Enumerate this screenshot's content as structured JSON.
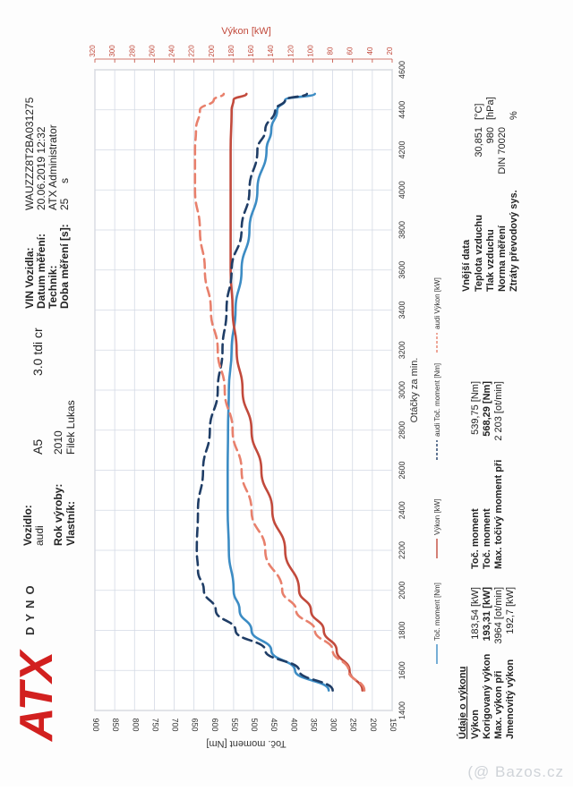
{
  "vehicle": {
    "vozidlo_label": "Vozidlo:",
    "vozidlo_value": "audi",
    "model": "A5",
    "engine": "3.0 tdi cr",
    "rok_label": "Rok výroby:",
    "rok_value": "2010",
    "vlastnik_label": "Vlastník:",
    "vlastnik_value": "Filek Lukas"
  },
  "measurement": {
    "vin_label": "VIN Vozidla:",
    "vin_value": "WAUZZZ8T2BA031275",
    "datum_label": "Datum měření:",
    "datum_value": "20.06.2019 12:32",
    "technik_label": "Technik:",
    "technik_value": "ATX Administrator",
    "doba_label": "Doba měření [s]:",
    "doba_value": "25",
    "doba_unit": "s"
  },
  "brand": {
    "logo_text": "ATX",
    "sub_text": "DYNO"
  },
  "chart_data": {
    "type": "line",
    "xlabel": "Otáčky za min.",
    "ylabel_left": "Toč. moment [Nm]",
    "ylabel_right": "Výkon [kW]",
    "x_range": [
      1400,
      4600
    ],
    "x_ticks": [
      "1400",
      "1600",
      "1800",
      "2000",
      "2200",
      "2400",
      "2600",
      "2800",
      "3000",
      "3200",
      "3400",
      "3600",
      "3800",
      "4000",
      "4200",
      "4400",
      "4600"
    ],
    "torque_range": [
      150,
      900
    ],
    "torque_ticks": [
      "150",
      "200",
      "250",
      "300",
      "350",
      "400",
      "450",
      "500",
      "550",
      "600",
      "650",
      "700",
      "750",
      "800",
      "850",
      "900"
    ],
    "power_range": [
      20,
      320
    ],
    "power_ticks": [
      "20",
      "40",
      "60",
      "80",
      "100",
      "120",
      "140",
      "160",
      "180",
      "200",
      "220",
      "240",
      "260",
      "280",
      "300",
      "320"
    ],
    "legend": [
      "Toč. moment [Nm]",
      "Výkon [kW]",
      "audi Toč. moment [Nm]",
      "audi Výkon [kW]"
    ],
    "series": [
      {
        "name": "Toč. moment [Nm]",
        "axis": "torque",
        "color": "#3c8cc4",
        "dash": "solid",
        "points": [
          [
            1500,
            310
          ],
          [
            1600,
            395
          ],
          [
            1700,
            455
          ],
          [
            1800,
            505
          ],
          [
            1900,
            535
          ],
          [
            2000,
            550
          ],
          [
            2200,
            562
          ],
          [
            2400,
            565
          ],
          [
            2600,
            565
          ],
          [
            2800,
            564
          ],
          [
            3000,
            562
          ],
          [
            3200,
            555
          ],
          [
            3400,
            545
          ],
          [
            3600,
            530
          ],
          [
            3800,
            510
          ],
          [
            4000,
            490
          ],
          [
            4200,
            467
          ],
          [
            4300,
            455
          ],
          [
            4400,
            440
          ],
          [
            4450,
            420
          ],
          [
            4480,
            345
          ]
        ]
      },
      {
        "name": "Výkon [kW]",
        "axis": "power",
        "color": "#c24a3c",
        "dash": "solid",
        "points": [
          [
            1500,
            50
          ],
          [
            1600,
            63
          ],
          [
            1700,
            76
          ],
          [
            1800,
            89
          ],
          [
            1900,
            102
          ],
          [
            2000,
            114
          ],
          [
            2200,
            128
          ],
          [
            2400,
            141
          ],
          [
            2600,
            152
          ],
          [
            2800,
            162
          ],
          [
            3000,
            171
          ],
          [
            3200,
            177
          ],
          [
            3400,
            181
          ],
          [
            3600,
            183
          ],
          [
            3800,
            183
          ],
          [
            4000,
            183
          ],
          [
            4200,
            183
          ],
          [
            4400,
            182
          ],
          [
            4450,
            180
          ],
          [
            4480,
            167
          ]
        ]
      },
      {
        "name": "audi Toč. moment [Nm]",
        "axis": "torque",
        "color": "#1f3d66",
        "dash": "dashed",
        "points": [
          [
            1500,
            300
          ],
          [
            1600,
            385
          ],
          [
            1700,
            470
          ],
          [
            1800,
            545
          ],
          [
            1900,
            595
          ],
          [
            2000,
            625
          ],
          [
            2100,
            640
          ],
          [
            2200,
            643
          ],
          [
            2400,
            640
          ],
          [
            2600,
            627
          ],
          [
            2800,
            610
          ],
          [
            3000,
            590
          ],
          [
            3200,
            578
          ],
          [
            3400,
            568
          ],
          [
            3600,
            555
          ],
          [
            3800,
            530
          ],
          [
            4000,
            510
          ],
          [
            4200,
            490
          ],
          [
            4300,
            470
          ],
          [
            4400,
            445
          ],
          [
            4450,
            420
          ],
          [
            4480,
            365
          ]
        ]
      },
      {
        "name": "audi Výkon [kW]",
        "axis": "power",
        "color": "#e8806c",
        "dash": "dashed",
        "points": [
          [
            1500,
            48
          ],
          [
            1600,
            64
          ],
          [
            1700,
            80
          ],
          [
            1800,
            98
          ],
          [
            1900,
            117
          ],
          [
            2000,
            131
          ],
          [
            2200,
            148
          ],
          [
            2400,
            162
          ],
          [
            2600,
            172
          ],
          [
            2800,
            181
          ],
          [
            3000,
            189
          ],
          [
            3200,
            196
          ],
          [
            3400,
            203
          ],
          [
            3600,
            209
          ],
          [
            3800,
            214
          ],
          [
            4000,
            219
          ],
          [
            4200,
            219
          ],
          [
            4300,
            218
          ],
          [
            4400,
            214
          ],
          [
            4450,
            200
          ],
          [
            4480,
            190
          ]
        ]
      }
    ],
    "grid": true
  },
  "results": {
    "title": "Údaje o výkonu",
    "rows": [
      {
        "label": "Výkon",
        "value": "183,54 [kW]",
        "bold": false
      },
      {
        "label": "Korigovaný výkon",
        "value": "193,31 [kW]",
        "bold": true
      },
      {
        "label": "Max. výkon při",
        "value": "3964 [ot/min]",
        "bold": false
      },
      {
        "label": "Jmenovitý výkon",
        "value": "192,7 [kW]",
        "bold": false
      }
    ],
    "torque_rows": [
      {
        "label": "Toč. moment",
        "value": "539,75 [Nm]",
        "bold": false
      },
      {
        "label": "Toč. moment",
        "value": "568,29 [Nm]",
        "bold": true
      },
      {
        "label": "Max. točivý moment při",
        "value": "2 203 [ot/min]",
        "bold": false
      }
    ]
  },
  "external": {
    "title": "Vnější data",
    "rows": [
      {
        "label": "Teplota vzduchu",
        "value": "30,851",
        "unit": "[°C]"
      },
      {
        "label": "Tlak vzduchu",
        "value": "980",
        "unit": "[hPa]"
      },
      {
        "label": "Norma měření",
        "value": "DIN 70020",
        "unit": ""
      },
      {
        "label": "Ztráty převodový sys.",
        "value": "",
        "unit": "%"
      }
    ]
  },
  "watermark": "(@ Bazos.cz"
}
